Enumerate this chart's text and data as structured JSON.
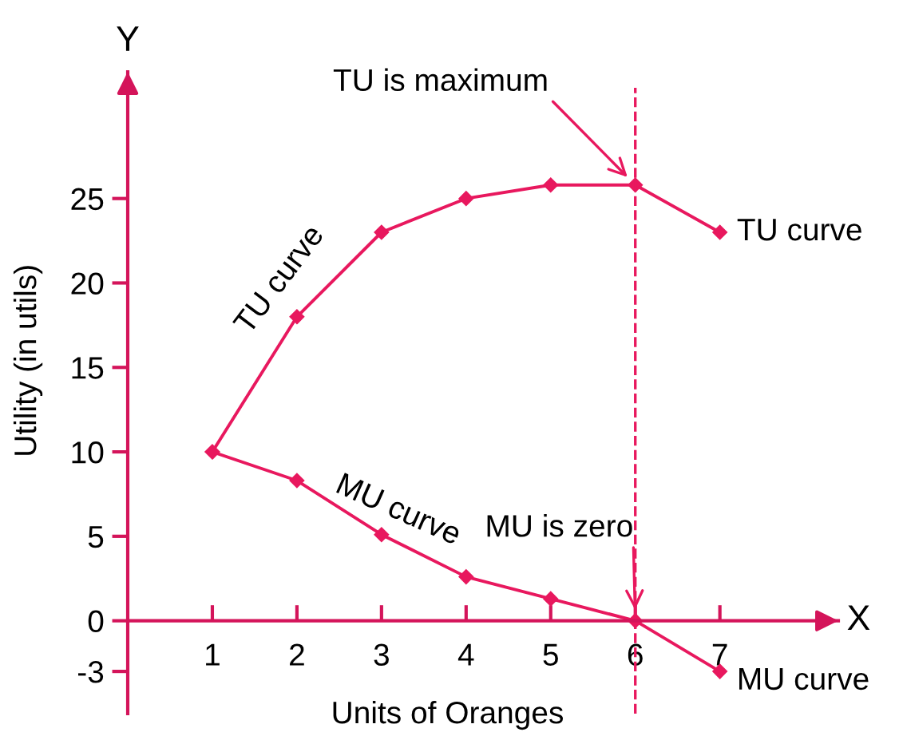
{
  "chart_data": {
    "type": "line",
    "xlabel": "Units of Oranges",
    "ylabel": "Utility (in utils)",
    "x": [
      1,
      2,
      3,
      4,
      5,
      6,
      7
    ],
    "series": [
      {
        "name": "TU curve",
        "color": "#e8185e",
        "values": [
          10,
          18,
          23,
          25,
          25.8,
          25.8,
          23
        ]
      },
      {
        "name": "MU curve",
        "color": "#e8185e",
        "values": [
          10,
          8.3,
          5.1,
          2.6,
          1.3,
          0,
          -3
        ]
      }
    ],
    "xlim": [
      0,
      8.4
    ],
    "ylim": [
      -5.5,
      32.5
    ],
    "xticks": [
      1,
      2,
      3,
      4,
      5,
      6,
      7
    ],
    "yticks": [
      -3,
      0,
      5,
      10,
      15,
      20,
      25
    ],
    "marker": "diamond",
    "line_style": "solid",
    "grid": false,
    "legend": false,
    "ref_lines": [
      {
        "axis": "x",
        "value": 6,
        "label": null,
        "color": "#e8185e",
        "line_style": "dashed"
      }
    ],
    "annotations": [
      {
        "text": "TU is maximum",
        "x": 6,
        "y": 25.8
      },
      {
        "text": "MU is zero",
        "x": 6,
        "y": 0
      },
      "TU curve",
      "MU curve",
      "Y",
      "X"
    ]
  }
}
